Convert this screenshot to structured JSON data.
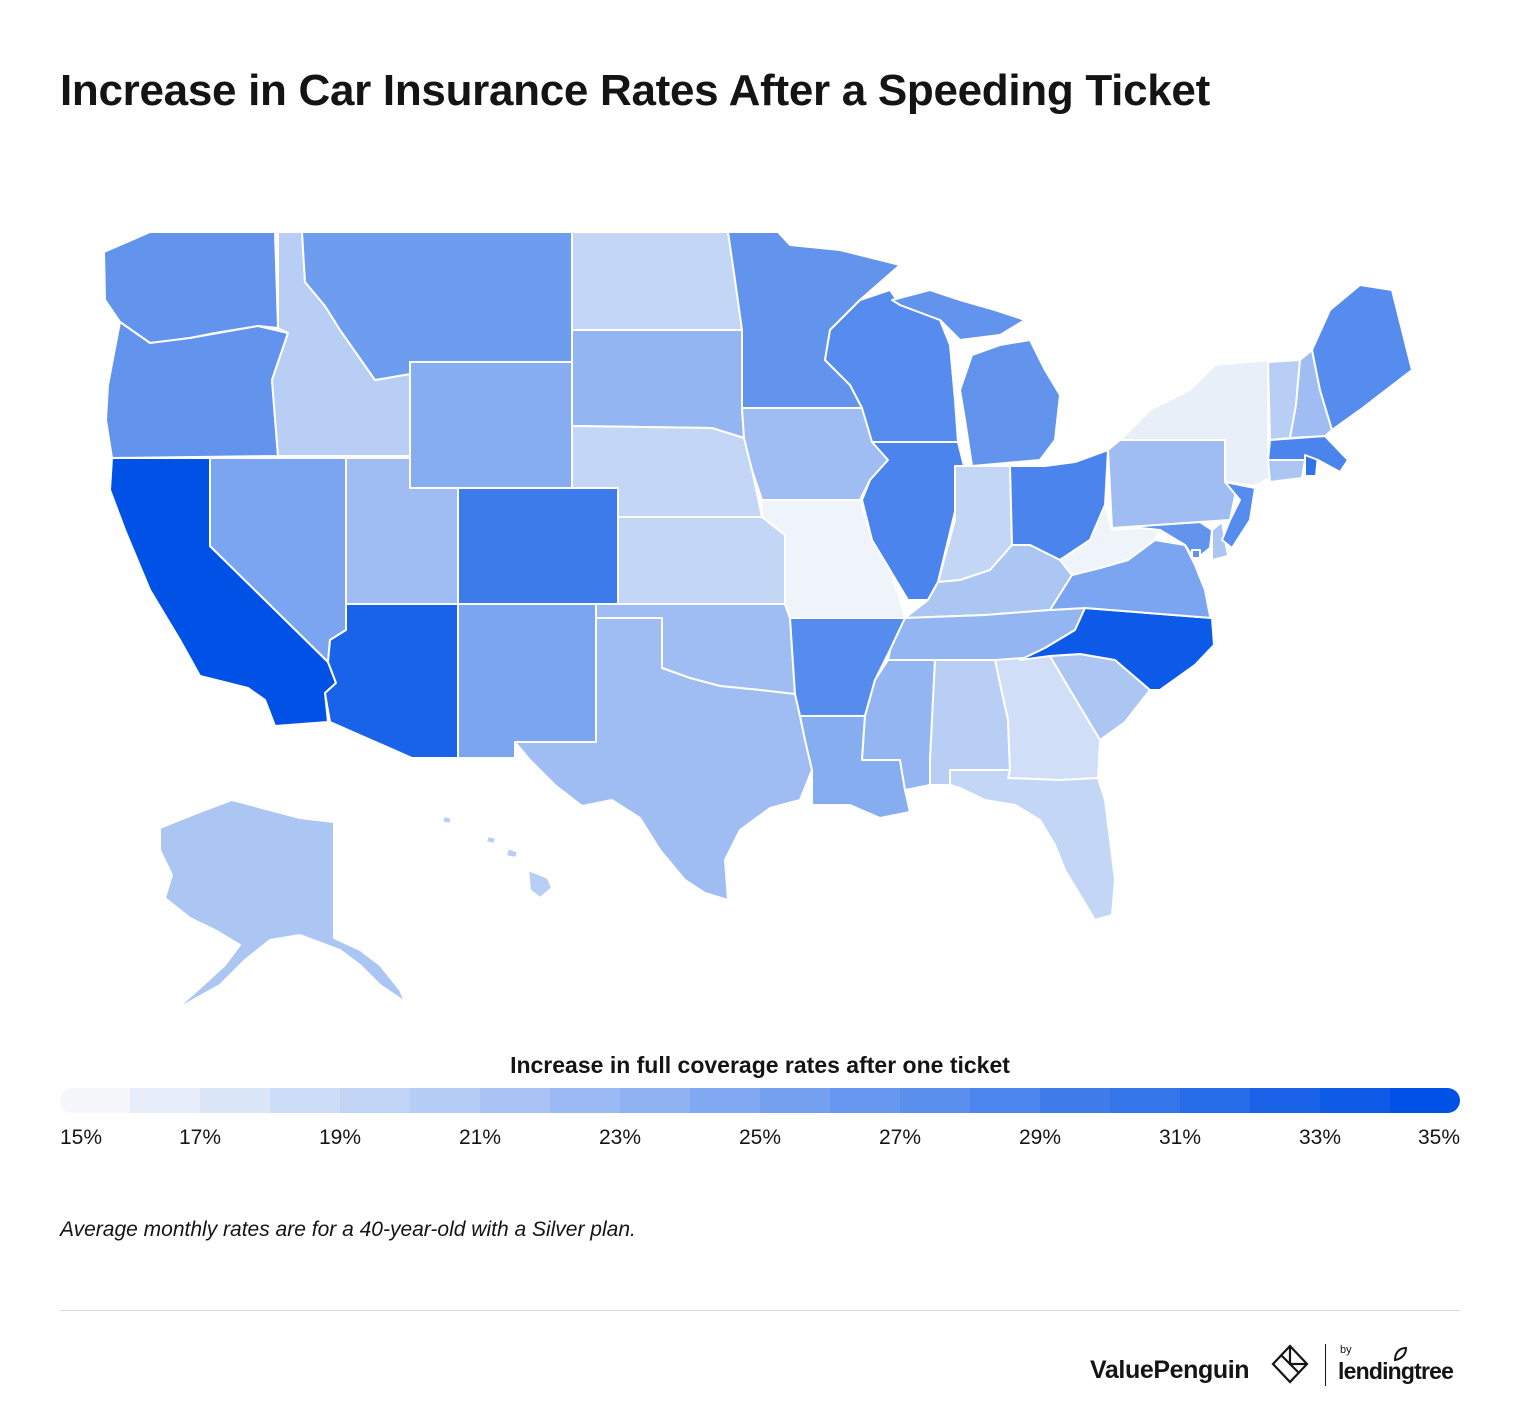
{
  "title": "Increase in Car Insurance Rates After a Speeding Ticket",
  "legend": {
    "title": "Increase in full coverage rates after one ticket",
    "min": 15,
    "max": 35,
    "ticks": [
      "15%",
      "17%",
      "19%",
      "21%",
      "23%",
      "25%",
      "27%",
      "29%",
      "31%",
      "33%",
      "35%"
    ],
    "color_low": "#f5f7fa",
    "color_high": "#0052e6"
  },
  "footnote": "Average monthly rates are for a 40-year-old with a Silver plan.",
  "brand": {
    "valuepenguin": "ValuePenguin",
    "by": "by",
    "lendingtree": "lendingtree",
    "logo_icon": "valuepenguin-diamond-icon",
    "leaf_icon": "lendingtree-leaf-icon"
  },
  "map_data": {
    "type": "choropleth",
    "metric": "Increase in full coverage rates after one ticket (%)",
    "states": {
      "WA": 27,
      "OR": 27,
      "CA": 35,
      "NV": 25,
      "ID": 20,
      "MT": 26,
      "WY": 24,
      "UT": 22,
      "AZ": 33,
      "CO": 30,
      "NM": 25,
      "ND": 19,
      "SD": 23,
      "NE": 19,
      "KS": 19,
      "OK": 22,
      "TX": 22,
      "MN": 27,
      "IA": 22,
      "MO": 15.5,
      "AR": 28,
      "LA": 24,
      "WI": 28,
      "IL": 29,
      "MI": 27,
      "IN": 19,
      "OH": 29,
      "KY": 21,
      "TN": 23,
      "MS": 23,
      "AL": 20,
      "GA": 18,
      "FL": 19,
      "SC": 21,
      "NC": 34,
      "VA": 25,
      "WV": 15.5,
      "PA": 22,
      "NY": 16,
      "ME": 28,
      "VT": 20,
      "NH": 22,
      "MA": 29,
      "RI": 31,
      "CT": 21,
      "NJ": 28,
      "DE": 21,
      "MD": 27,
      "DC": 27,
      "AK": 21,
      "HI": 20
    }
  }
}
